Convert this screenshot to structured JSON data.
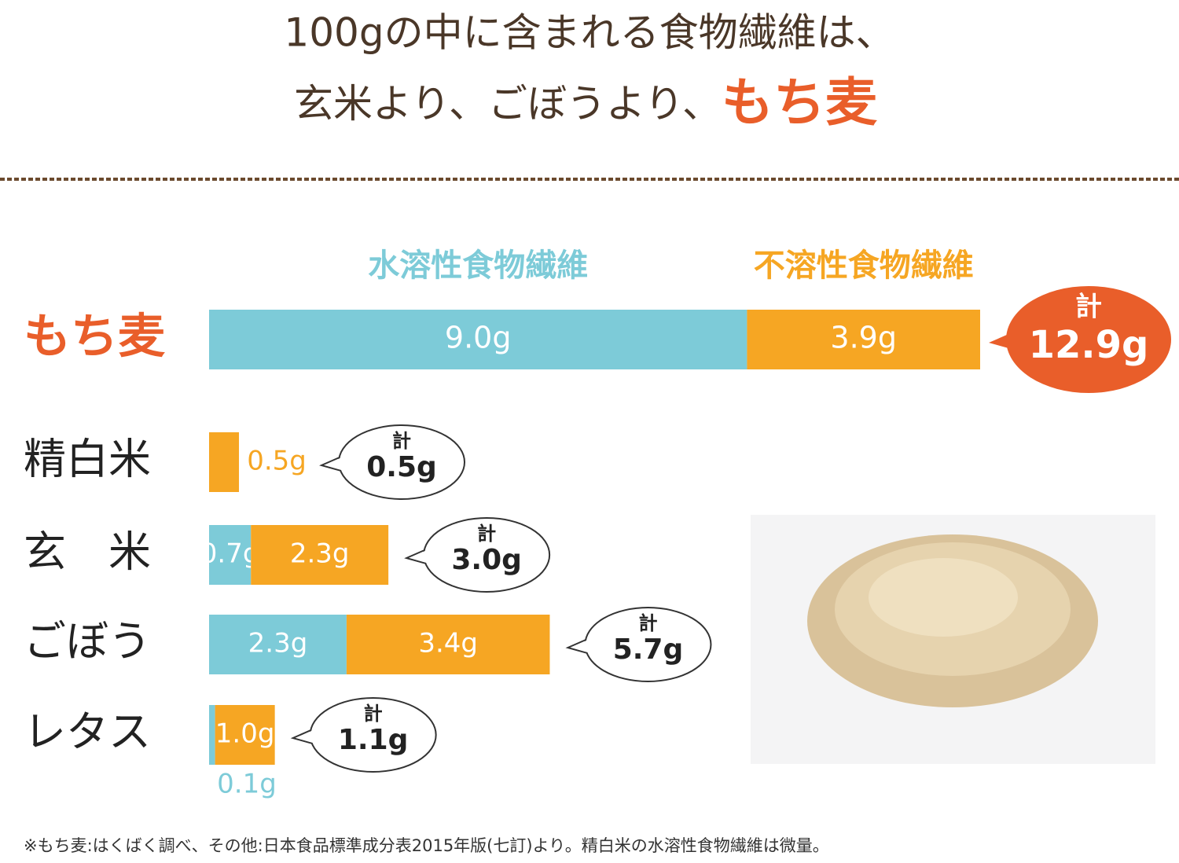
{
  "chart_data": {
    "type": "stacked-bar",
    "title": [
      "100gの中に含まれる食物繊維は、",
      "玄米より、ごぼうより、",
      "もち麦"
    ],
    "categories": [
      "もち麦",
      "精白米",
      "玄　米",
      "ごぼう",
      "レタス"
    ],
    "series": [
      {
        "name": "水溶性食物繊維",
        "color": "#7dcbd8",
        "values": [
          9.0,
          null,
          0.7,
          2.3,
          0.1
        ],
        "value_labels": [
          "9.0g",
          null,
          "0.7g",
          "2.3g",
          "0.1g"
        ]
      },
      {
        "name": "不溶性食物繊維",
        "color": "#f6a623",
        "values": [
          3.9,
          0.5,
          2.3,
          3.4,
          1.0
        ],
        "value_labels": [
          "3.9g",
          "0.5g",
          "2.3g",
          "3.4g",
          "1.0g"
        ]
      }
    ],
    "totals": {
      "label": "計",
      "values": [
        12.9,
        0.5,
        3.0,
        5.7,
        1.1
      ],
      "value_labels": [
        "12.9g",
        "0.5g",
        "3.0g",
        "5.7g",
        "1.1g"
      ],
      "color": "#e95e2a"
    },
    "footnote": "※もち麦:はくばく調べ、その他:日本食品標準成分表2015年版(七訂)より。精白米の水溶性食物繊維は微量。"
  }
}
